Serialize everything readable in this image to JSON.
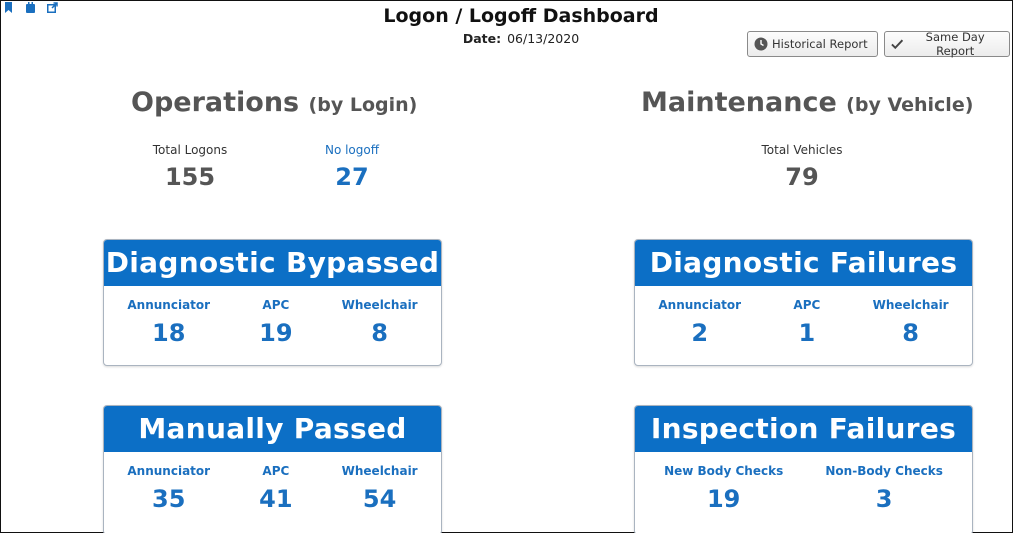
{
  "header": {
    "title": "Logon / Logoff Dashboard",
    "date_label": "Date:",
    "date_value": "06/13/2020"
  },
  "toolbar_icons": [
    "bookmark-icon",
    "calendar-icon",
    "external-link-icon"
  ],
  "buttons": {
    "historical_label": "Historical Report",
    "same_day_label": "Same Day Report"
  },
  "operations": {
    "title": "Operations",
    "subtitle": "(by Login)",
    "total_logons_label": "Total Logons",
    "total_logons_value": "155",
    "no_logoff_label": "No logoff",
    "no_logoff_value": "27"
  },
  "maintenance": {
    "title": "Maintenance",
    "subtitle": "(by Vehicle)",
    "total_vehicles_label": "Total Vehicles",
    "total_vehicles_value": "79"
  },
  "cards": {
    "diagnostic_bypassed": {
      "title": "Diagnostic Bypassed",
      "metrics": [
        {
          "label": "Annunciator",
          "value": "18"
        },
        {
          "label": "APC",
          "value": "19"
        },
        {
          "label": "Wheelchair",
          "value": "8"
        }
      ]
    },
    "diagnostic_failures": {
      "title": "Diagnostic Failures",
      "metrics": [
        {
          "label": "Annunciator",
          "value": "2"
        },
        {
          "label": "APC",
          "value": "1"
        },
        {
          "label": "Wheelchair",
          "value": "8"
        }
      ]
    },
    "manually_passed": {
      "title": "Manually Passed",
      "metrics": [
        {
          "label": "Annunciator",
          "value": "35"
        },
        {
          "label": "APC",
          "value": "41"
        },
        {
          "label": "Wheelchair",
          "value": "54"
        }
      ]
    },
    "inspection_failures": {
      "title": "Inspection Failures",
      "metrics": [
        {
          "label": "New Body Checks",
          "value": "19"
        },
        {
          "label": "Non-Body Checks",
          "value": "3"
        }
      ]
    }
  },
  "colors": {
    "accent_blue": "#0c6fc6",
    "metric_blue": "#1a6fbf",
    "heading_gray": "#555555"
  }
}
